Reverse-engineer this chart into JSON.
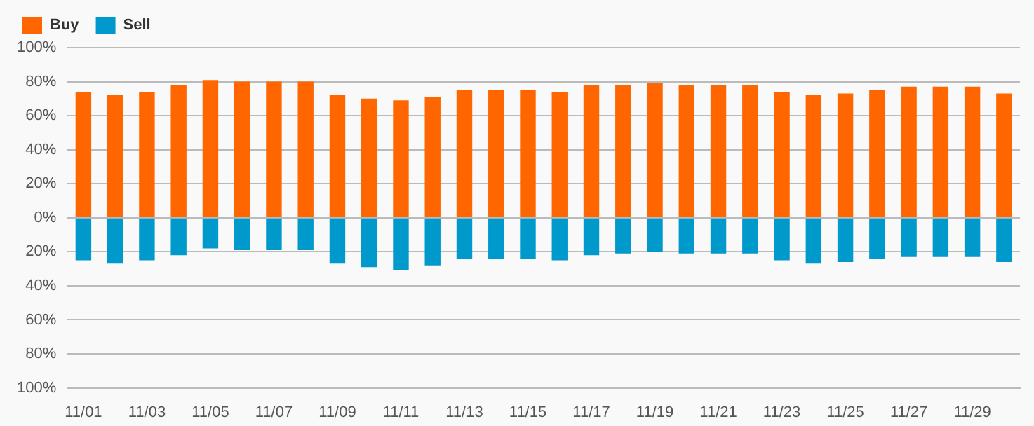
{
  "chart_data": {
    "type": "bar",
    "stacked": true,
    "legend": "top left",
    "grid": "y",
    "categories": [
      "11/01",
      null,
      "11/03",
      null,
      "11/05",
      null,
      "11/07",
      null,
      "11/09",
      null,
      "11/11",
      null,
      "11/13",
      null,
      "11/15",
      null,
      "11/17",
      null,
      "11/19",
      null,
      "11/21",
      null,
      "11/23",
      null,
      "11/25",
      null,
      "11/27",
      null,
      "11/29",
      null
    ],
    "series": [
      {
        "name": "Buy",
        "color": "#ff6600",
        "values": [
          74,
          72,
          74,
          78,
          81,
          80,
          80,
          80,
          72,
          70,
          69,
          71,
          75,
          75,
          75,
          74,
          78,
          78,
          79,
          78,
          78,
          78,
          74,
          72,
          73,
          75,
          77,
          77,
          77,
          73
        ]
      },
      {
        "name": "Sell",
        "color": "#0099cc",
        "values": [
          -25,
          -27,
          -25,
          -22,
          -18,
          -19,
          -19,
          -19,
          -27,
          -29,
          -31,
          -28,
          -24,
          -24,
          -24,
          -25,
          -22,
          -21,
          -20,
          -21,
          -21,
          -21,
          -25,
          -27,
          -26,
          -24,
          -23,
          -23,
          -23,
          -26
        ]
      }
    ],
    "ylim": [
      -100,
      100
    ],
    "yticks": [
      {
        "value": -100,
        "label": "100%"
      },
      {
        "value": -80,
        "label": "80%"
      },
      {
        "value": -60,
        "label": "60%"
      },
      {
        "value": -40,
        "label": "40%"
      },
      {
        "value": -20,
        "label": "20%"
      },
      {
        "value": 0,
        "label": "0%"
      },
      {
        "value": 20,
        "label": "20%"
      },
      {
        "value": 40,
        "label": "40%"
      },
      {
        "value": 60,
        "label": "60%"
      },
      {
        "value": 80,
        "label": "80%"
      },
      {
        "value": 100,
        "label": "100%"
      }
    ]
  }
}
